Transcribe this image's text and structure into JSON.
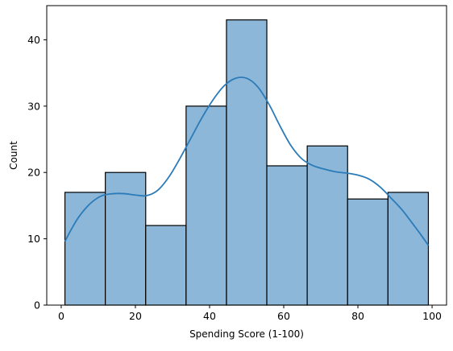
{
  "chart_data": {
    "type": "bar",
    "subtype": "histogram-with-kde",
    "title": "",
    "xlabel": "Spending Score (1-100)",
    "ylabel": "Count",
    "xlim": [
      -3.9,
      103.9
    ],
    "ylim": [
      0,
      45.15
    ],
    "xticks": [
      0,
      20,
      40,
      60,
      80,
      100
    ],
    "yticks": [
      0,
      10,
      20,
      30,
      40
    ],
    "bins": [
      {
        "x0": 1.0,
        "x1": 11.89,
        "count": 17
      },
      {
        "x0": 11.89,
        "x1": 22.78,
        "count": 20
      },
      {
        "x0": 22.78,
        "x1": 33.67,
        "count": 12
      },
      {
        "x0": 33.67,
        "x1": 44.56,
        "count": 30
      },
      {
        "x0": 44.56,
        "x1": 55.44,
        "count": 43
      },
      {
        "x0": 55.44,
        "x1": 66.33,
        "count": 21
      },
      {
        "x0": 66.33,
        "x1": 77.22,
        "count": 24
      },
      {
        "x0": 77.22,
        "x1": 88.11,
        "count": 16
      },
      {
        "x0": 88.11,
        "x1": 99.0,
        "count": 17
      }
    ],
    "kde": {
      "x": [
        1,
        3,
        5,
        8,
        11,
        14,
        17,
        20,
        23,
        26,
        29,
        32,
        35,
        38,
        41,
        44,
        47,
        50,
        53,
        56,
        59,
        62,
        65,
        68,
        71,
        74,
        77,
        80,
        83,
        86,
        89,
        92,
        95,
        97,
        99
      ],
      "y": [
        9.6,
        11.7,
        13.5,
        15.4,
        16.5,
        16.8,
        16.8,
        16.6,
        16.5,
        17.3,
        19.3,
        22.1,
        25.2,
        28.3,
        31.0,
        33.1,
        34.2,
        34.2,
        32.9,
        30.3,
        27.0,
        24.0,
        22.0,
        21.0,
        20.5,
        20.1,
        19.9,
        19.6,
        19.0,
        17.8,
        16.1,
        14.3,
        12.1,
        10.6,
        9.0
      ]
    },
    "grid": false,
    "legend": "none",
    "colors": {
      "bar_fill": "#8cb7d8",
      "bar_edge": "#000000",
      "kde_line": "#2b7bb9",
      "axis": "#000000",
      "text": "#000000"
    }
  }
}
